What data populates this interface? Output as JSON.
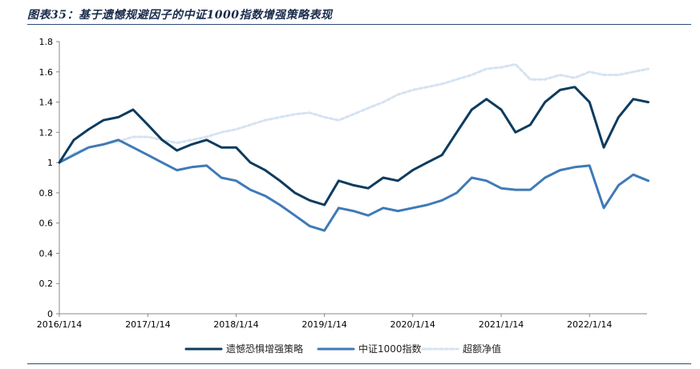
{
  "header": {
    "title": "图表35：基于遗憾规避因子的中证1000指数增强策略表现"
  },
  "colors": {
    "strategy": "#0d3b5e",
    "index": "#3f7ab7",
    "excess": "#d5e3f1"
  },
  "chart_data": {
    "type": "line",
    "title": "",
    "xlabel": "",
    "ylabel": "",
    "ylim": [
      0,
      1.8
    ],
    "yticks": [
      "0",
      "0.2",
      "0.4",
      "0.6",
      "0.8",
      "1",
      "1.2",
      "1.4",
      "1.6",
      "1.8"
    ],
    "xticks": [
      "2016/1/14",
      "2017/1/14",
      "2018/1/14",
      "2019/1/14",
      "2020/1/14",
      "2021/1/14",
      "2022/1/14"
    ],
    "legend_position": "bottom",
    "grid": false,
    "x_dates": [
      "2016/1/14",
      "2016/3/14",
      "2016/5/14",
      "2016/7/14",
      "2016/9/14",
      "2016/11/14",
      "2017/1/14",
      "2017/3/14",
      "2017/5/14",
      "2017/7/14",
      "2017/9/14",
      "2017/11/14",
      "2018/1/14",
      "2018/3/14",
      "2018/5/14",
      "2018/7/14",
      "2018/9/14",
      "2018/11/14",
      "2019/1/14",
      "2019/3/14",
      "2019/5/14",
      "2019/7/14",
      "2019/9/14",
      "2019/11/14",
      "2020/1/14",
      "2020/3/14",
      "2020/5/14",
      "2020/7/14",
      "2020/9/14",
      "2020/11/14",
      "2021/1/14",
      "2021/3/14",
      "2021/5/14",
      "2021/7/14",
      "2021/9/14",
      "2021/11/14",
      "2022/1/14",
      "2022/3/14",
      "2022/5/14",
      "2022/7/14",
      "2022/9/14"
    ],
    "series": [
      {
        "name": "遗憾恐惧增强策略",
        "values": [
          1.0,
          1.15,
          1.22,
          1.28,
          1.3,
          1.35,
          1.25,
          1.15,
          1.08,
          1.12,
          1.15,
          1.1,
          1.1,
          1.0,
          0.95,
          0.88,
          0.8,
          0.75,
          0.72,
          0.88,
          0.85,
          0.83,
          0.9,
          0.88,
          0.95,
          1.0,
          1.05,
          1.2,
          1.35,
          1.42,
          1.35,
          1.2,
          1.25,
          1.4,
          1.48,
          1.5,
          1.4,
          1.1,
          1.3,
          1.42,
          1.4
        ]
      },
      {
        "name": "中证1000指数",
        "values": [
          1.0,
          1.05,
          1.1,
          1.12,
          1.15,
          1.1,
          1.05,
          1.0,
          0.95,
          0.97,
          0.98,
          0.9,
          0.88,
          0.82,
          0.78,
          0.72,
          0.65,
          0.58,
          0.55,
          0.7,
          0.68,
          0.65,
          0.7,
          0.68,
          0.7,
          0.72,
          0.75,
          0.8,
          0.9,
          0.88,
          0.83,
          0.82,
          0.82,
          0.9,
          0.95,
          0.97,
          0.98,
          0.7,
          0.85,
          0.92,
          0.88
        ]
      },
      {
        "name": "超额净值",
        "values": [
          1.0,
          1.06,
          1.1,
          1.12,
          1.14,
          1.17,
          1.17,
          1.15,
          1.13,
          1.15,
          1.17,
          1.2,
          1.22,
          1.25,
          1.28,
          1.3,
          1.32,
          1.33,
          1.3,
          1.28,
          1.32,
          1.36,
          1.4,
          1.45,
          1.48,
          1.5,
          1.52,
          1.55,
          1.58,
          1.62,
          1.63,
          1.65,
          1.55,
          1.55,
          1.58,
          1.56,
          1.6,
          1.58,
          1.58,
          1.6,
          1.62
        ]
      }
    ]
  }
}
